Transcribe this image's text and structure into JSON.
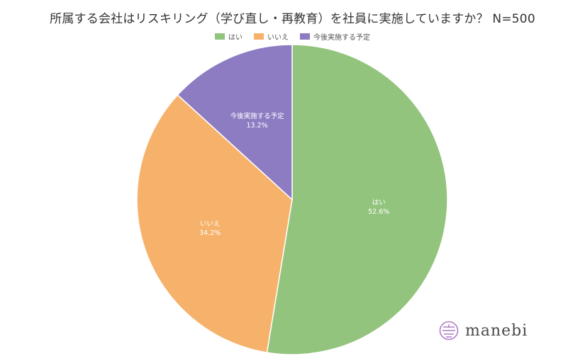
{
  "chart_data": {
    "type": "pie",
    "title": "所属する会社はリスキリング（学び直し・再教育）を社員に実施していますか？ N=500",
    "legend_placement": "top",
    "slices": [
      {
        "label": "はい",
        "value": 52.6,
        "value_label": "52.6%",
        "color": "#93c47d"
      },
      {
        "label": "いいえ",
        "value": 34.2,
        "value_label": "34.2%",
        "color": "#f6b26b"
      },
      {
        "label": "今後実施する予定",
        "value": 13.2,
        "value_label": "13.2%",
        "color": "#8e7cc3"
      }
    ]
  },
  "brand": {
    "name": "manebi",
    "logo_icon": "manebi-logo-icon",
    "logo_color": "#b07cc6"
  }
}
